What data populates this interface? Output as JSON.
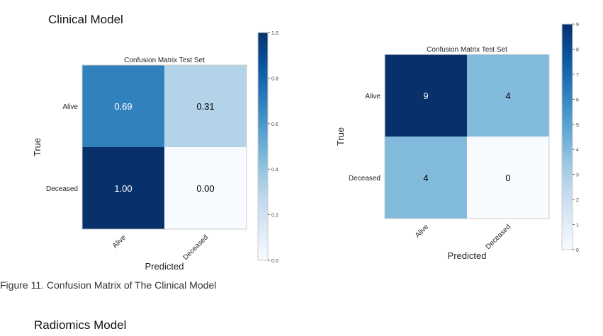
{
  "headings": {
    "clinical": "Clinical Model",
    "radiomics": "Radiomics Model"
  },
  "caption": "Figure 11. Confusion Matrix of The Clinical Model",
  "chart_data": [
    {
      "type": "heatmap",
      "title": "Confusion Matrix Test Set",
      "xlabel": "Predicted",
      "ylabel": "True",
      "x_categories": [
        "Alive",
        "Deceased"
      ],
      "y_categories": [
        "Alive",
        "Deceased"
      ],
      "values": [
        [
          0.69,
          0.31
        ],
        [
          1.0,
          0.0
        ]
      ],
      "labels": [
        [
          "0.69",
          "0.31"
        ],
        [
          "1.00",
          "0.00"
        ]
      ],
      "colorbar": {
        "range": [
          0,
          1
        ],
        "ticks": [
          "0.0",
          "0.2",
          "0.4",
          "0.6",
          "0.8",
          "1.0"
        ],
        "tick_values": [
          0,
          0.2,
          0.4,
          0.6,
          0.8,
          1.0
        ]
      },
      "colormap": "Blues"
    },
    {
      "type": "heatmap",
      "title": "Confusion Matrix Test Set",
      "xlabel": "Predicted",
      "ylabel": "True",
      "x_categories": [
        "Alive",
        "Deceased"
      ],
      "y_categories": [
        "Alive",
        "Deceased"
      ],
      "values": [
        [
          9,
          4
        ],
        [
          4,
          0
        ]
      ],
      "labels": [
        [
          "9",
          "4"
        ],
        [
          "4",
          "0"
        ]
      ],
      "colorbar": {
        "range": [
          0,
          9
        ],
        "ticks": [
          "0",
          "1",
          "2",
          "3",
          "4",
          "5",
          "6",
          "7",
          "8",
          "9"
        ],
        "tick_values": [
          0,
          1,
          2,
          3,
          4,
          5,
          6,
          7,
          8,
          9
        ]
      },
      "colormap": "Blues"
    }
  ]
}
